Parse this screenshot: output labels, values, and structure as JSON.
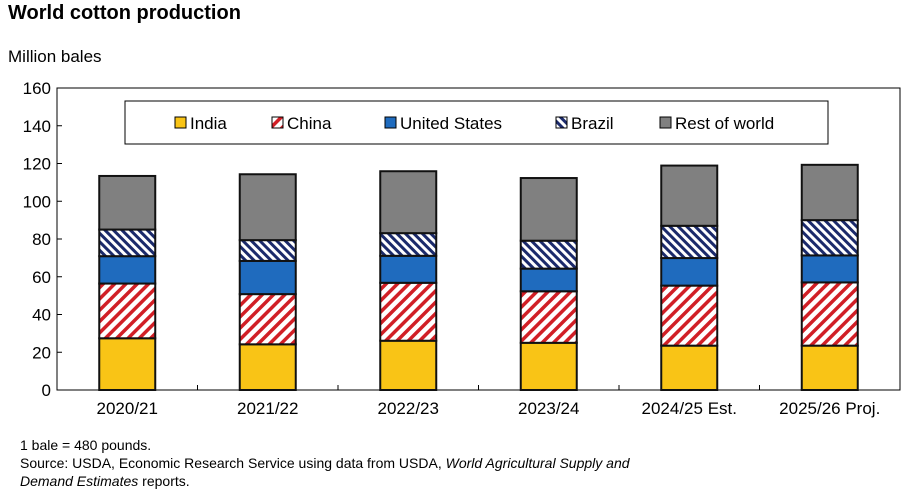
{
  "chart_data": {
    "type": "bar",
    "stacked": true,
    "title": "World cotton production",
    "ylabel": "Million bales",
    "xlabel": "",
    "ylim": [
      0,
      160
    ],
    "yticks": [
      0,
      20,
      40,
      60,
      80,
      100,
      120,
      140,
      160
    ],
    "grid": false,
    "legend_placement": "top-center",
    "categories": [
      "2020/21",
      "2021/22",
      "2022/23",
      "2023/24",
      "2024/25 Est.",
      "2025/26 Proj."
    ],
    "series": [
      {
        "name": "India",
        "color": "#F9C416",
        "pattern": "solid",
        "values": [
          27.4,
          24.2,
          26.1,
          25.0,
          23.5,
          23.5
        ]
      },
      {
        "name": "China",
        "color": "#D11F26",
        "pattern": "diagonal-up",
        "values": [
          29.0,
          26.6,
          30.7,
          27.3,
          31.8,
          33.5
        ]
      },
      {
        "name": "United States",
        "color": "#1F6BBE",
        "pattern": "solid",
        "values": [
          14.5,
          17.6,
          14.3,
          12.0,
          14.6,
          14.3
        ]
      },
      {
        "name": "Brazil",
        "color": "#1B2A6B",
        "pattern": "diagonal-down",
        "values": [
          14.1,
          11.0,
          12.0,
          14.8,
          17.1,
          18.7
        ]
      },
      {
        "name": "Rest of world",
        "color": "#808080",
        "pattern": "solid",
        "values": [
          28.4,
          34.9,
          32.8,
          33.2,
          31.9,
          29.3
        ]
      }
    ]
  },
  "notes": {
    "line1": "1 bale = 480 pounds.",
    "line2_prefix": "Source: USDA, Economic Research Service using data from USDA, ",
    "line2_italic": "World Agricultural Supply and",
    "line3_italic": "Demand Estimates",
    "line3_suffix": " reports."
  }
}
